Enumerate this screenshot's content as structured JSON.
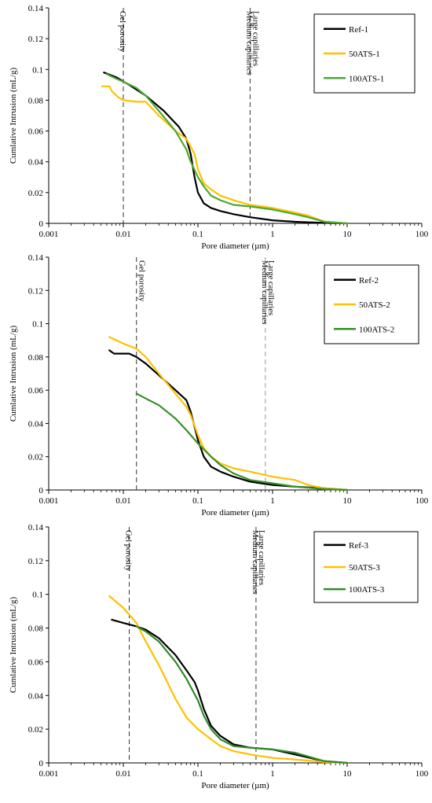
{
  "chart_data": [
    {
      "type": "line",
      "xscale": "log",
      "xlim": [
        0.001,
        100
      ],
      "ylim": [
        0,
        0.14
      ],
      "xticks": [
        "0.001",
        "0.01",
        "0.1",
        "1",
        "10",
        "100"
      ],
      "yticks": [
        "0",
        "0.02",
        "0.04",
        "0.06",
        "0.08",
        "0.1",
        "0.12",
        "0.14"
      ],
      "xlabel": "Pore diameter (µm)",
      "ylabel": "Cumlative Intrusion (mL/g)",
      "legend_position": "top-right",
      "colors": {
        "Ref-1": "#000000",
        "50ATS-1": "#ffc000",
        "100ATS-1": "#4aa832"
      },
      "annotations": [
        {
          "text": "Gel porosity",
          "x": 0.01,
          "side": "left",
          "style": "dashed"
        },
        {
          "text": "Medium capillaries",
          "x": 0.5,
          "side": "left",
          "style": "dashed"
        },
        {
          "text": "Large capillaries",
          "x": 0.5,
          "side": "right",
          "style": "dashed"
        }
      ],
      "series": [
        {
          "name": "Ref-1",
          "x": [
            0.0055,
            0.008,
            0.012,
            0.02,
            0.035,
            0.055,
            0.07,
            0.08,
            0.09,
            0.1,
            0.12,
            0.15,
            0.2,
            0.3,
            0.5,
            1,
            2,
            5,
            10
          ],
          "y": [
            0.098,
            0.095,
            0.09,
            0.083,
            0.073,
            0.063,
            0.055,
            0.045,
            0.03,
            0.02,
            0.013,
            0.01,
            0.008,
            0.006,
            0.004,
            0.002,
            0.001,
            0.0003,
            0
          ]
        },
        {
          "name": "50ATS-1",
          "x": [
            0.0052,
            0.0065,
            0.007,
            0.0085,
            0.01,
            0.015,
            0.02,
            0.03,
            0.05,
            0.07,
            0.09,
            0.1,
            0.12,
            0.15,
            0.2,
            0.3,
            0.5,
            1,
            2,
            3,
            5,
            10
          ],
          "y": [
            0.089,
            0.089,
            0.086,
            0.082,
            0.08,
            0.079,
            0.079,
            0.07,
            0.06,
            0.055,
            0.045,
            0.035,
            0.026,
            0.022,
            0.018,
            0.015,
            0.012,
            0.01,
            0.007,
            0.005,
            0.001,
            0
          ]
        },
        {
          "name": "100ATS-1",
          "x": [
            0.006,
            0.008,
            0.01,
            0.015,
            0.02,
            0.03,
            0.05,
            0.07,
            0.08,
            0.1,
            0.12,
            0.15,
            0.2,
            0.3,
            0.5,
            1,
            2,
            3,
            5,
            10
          ],
          "y": [
            0.097,
            0.094,
            0.092,
            0.088,
            0.083,
            0.073,
            0.06,
            0.048,
            0.04,
            0.03,
            0.024,
            0.018,
            0.015,
            0.012,
            0.011,
            0.009,
            0.006,
            0.004,
            0.001,
            0
          ]
        }
      ]
    },
    {
      "type": "line",
      "xscale": "log",
      "xlim": [
        0.001,
        100
      ],
      "ylim": [
        0,
        0.14
      ],
      "xticks": [
        "0.001",
        "0.01",
        "0.1",
        "1",
        "10",
        "100"
      ],
      "yticks": [
        "0",
        "0.02",
        "0.04",
        "0.06",
        "0.08",
        "0.1",
        "0.12",
        "0.14"
      ],
      "xlabel": "Pore diameter (µm)",
      "ylabel": "Cumlative Intrusion (mL/g)",
      "legend_position": "top-right",
      "colors": {
        "Ref-2": "#000000",
        "50ATS-2": "#ffc000",
        "100ATS-2": "#3a8f2a"
      },
      "annotations": [
        {
          "text": "Gel porosity",
          "x": 0.015,
          "side": "right",
          "style": "dashed"
        },
        {
          "text": "Medium capillaries",
          "x": 0.8,
          "side": "left",
          "style": "dashed"
        },
        {
          "text": "Large capillaries",
          "x": 0.8,
          "side": "right",
          "style": "dashed"
        }
      ],
      "series": [
        {
          "name": "Ref-2",
          "x": [
            0.0065,
            0.0075,
            0.009,
            0.012,
            0.015,
            0.02,
            0.03,
            0.05,
            0.07,
            0.08,
            0.09,
            0.1,
            0.12,
            0.15,
            0.2,
            0.3,
            0.5,
            1,
            2,
            5,
            10
          ],
          "y": [
            0.084,
            0.082,
            0.082,
            0.082,
            0.08,
            0.076,
            0.069,
            0.06,
            0.054,
            0.047,
            0.038,
            0.03,
            0.02,
            0.014,
            0.011,
            0.008,
            0.005,
            0.003,
            0.002,
            0.001,
            0
          ]
        },
        {
          "name": "50ATS-2",
          "x": [
            0.0065,
            0.01,
            0.015,
            0.02,
            0.03,
            0.05,
            0.07,
            0.08,
            0.1,
            0.12,
            0.15,
            0.2,
            0.3,
            0.5,
            1,
            2,
            3,
            5,
            10
          ],
          "y": [
            0.092,
            0.088,
            0.085,
            0.08,
            0.07,
            0.058,
            0.05,
            0.045,
            0.033,
            0.025,
            0.02,
            0.016,
            0.013,
            0.011,
            0.008,
            0.006,
            0.003,
            0.001,
            0
          ]
        },
        {
          "name": "100ATS-2",
          "x": [
            0.015,
            0.02,
            0.03,
            0.05,
            0.07,
            0.1,
            0.15,
            0.2,
            0.3,
            0.5,
            1,
            2,
            5,
            10
          ],
          "y": [
            0.058,
            0.055,
            0.051,
            0.043,
            0.036,
            0.028,
            0.02,
            0.015,
            0.01,
            0.006,
            0.004,
            0.002,
            0.0005,
            0
          ]
        }
      ]
    },
    {
      "type": "line",
      "xscale": "log",
      "xlim": [
        0.001,
        100
      ],
      "ylim": [
        0,
        0.14
      ],
      "xticks": [
        "0.001",
        "0.01",
        "0.1",
        "1",
        "10",
        "100"
      ],
      "yticks": [
        "0",
        "0.02",
        "0.04",
        "0.06",
        "0.08",
        "0.1",
        "0.12",
        "0.14"
      ],
      "xlabel": "Pore diameter (µm)",
      "ylabel": "Cumlative Intrusion (mL/g)",
      "legend_position": "top-right",
      "colors": {
        "Ref-3": "#000000",
        "50ATS-3": "#ffc000",
        "100ATS-3": "#2f8a2a"
      },
      "annotations": [
        {
          "text": "Gel porosity",
          "x": 0.012,
          "side": "left",
          "style": "dashed"
        },
        {
          "text": "Medium capillaries",
          "x": 0.6,
          "side": "left",
          "style": "dashed"
        },
        {
          "text": "Large capillaries",
          "x": 0.6,
          "side": "right",
          "style": "dashed"
        }
      ],
      "series": [
        {
          "name": "Ref-3",
          "x": [
            0.007,
            0.01,
            0.015,
            0.02,
            0.03,
            0.05,
            0.07,
            0.09,
            0.1,
            0.12,
            0.15,
            0.2,
            0.3,
            0.5,
            1,
            2,
            5,
            10
          ],
          "y": [
            0.085,
            0.083,
            0.081,
            0.079,
            0.074,
            0.064,
            0.055,
            0.048,
            0.043,
            0.032,
            0.022,
            0.016,
            0.011,
            0.009,
            0.008,
            0.005,
            0.001,
            0
          ]
        },
        {
          "name": "50ATS-3",
          "x": [
            0.0065,
            0.01,
            0.015,
            0.02,
            0.03,
            0.05,
            0.07,
            0.1,
            0.15,
            0.2,
            0.3,
            0.5,
            1,
            2,
            5,
            10
          ],
          "y": [
            0.099,
            0.092,
            0.083,
            0.072,
            0.058,
            0.038,
            0.027,
            0.02,
            0.014,
            0.01,
            0.007,
            0.005,
            0.003,
            0.002,
            0.0005,
            0
          ]
        },
        {
          "name": "100ATS-3",
          "x": [
            0.015,
            0.02,
            0.03,
            0.05,
            0.07,
            0.1,
            0.12,
            0.15,
            0.2,
            0.3,
            0.5,
            1,
            2,
            5,
            10
          ],
          "y": [
            0.081,
            0.078,
            0.072,
            0.06,
            0.05,
            0.037,
            0.028,
            0.02,
            0.014,
            0.01,
            0.009,
            0.008,
            0.006,
            0.001,
            0
          ]
        }
      ]
    }
  ]
}
